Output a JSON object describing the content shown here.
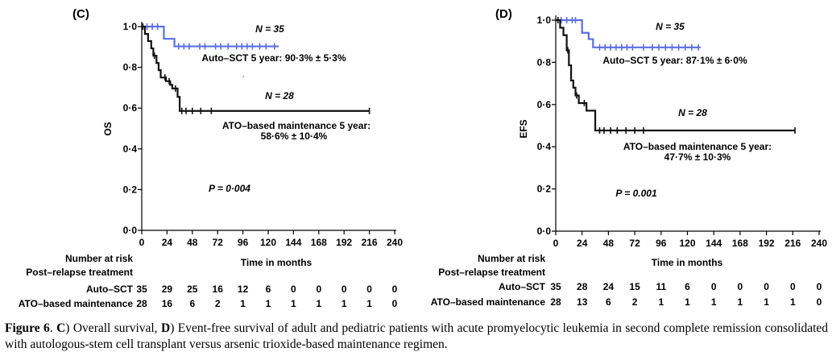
{
  "chart_data": [
    {
      "type": "line",
      "panel": "(C)",
      "ylabel": "OS",
      "xlabel": "Time in months",
      "xlim": [
        0,
        240
      ],
      "ylim": [
        0,
        1
      ],
      "xticks": [
        "0",
        "24",
        "48",
        "72",
        "96",
        "120",
        "144",
        "168",
        "192",
        "216",
        "240"
      ],
      "yticks": [
        "0·0",
        "0·2",
        "0·4",
        "0·6",
        "0·8",
        "1·0"
      ],
      "series": [
        {
          "color": "#5b6fe0",
          "x": [
            0,
            19,
            21,
            31,
            130
          ],
          "y": [
            1,
            1,
            0.94,
            0.903,
            0.903
          ],
          "censor_x": [
            5,
            10,
            15,
            35,
            40,
            45,
            55,
            60,
            70,
            75,
            82,
            90,
            95,
            100,
            105,
            112,
            118,
            126
          ]
        },
        {
          "color": "#111111",
          "x": [
            0,
            3,
            6,
            9,
            11,
            14,
            16,
            18,
            20,
            23,
            27,
            29,
            31,
            34,
            36,
            40,
            216
          ],
          "y": [
            1,
            0.964,
            0.929,
            0.893,
            0.857,
            0.821,
            0.786,
            0.75,
            0.75,
            0.732,
            0.714,
            0.696,
            0.696,
            0.655,
            0.586,
            0.586,
            0.586
          ],
          "censor_x": [
            1,
            12,
            22,
            26,
            32,
            38,
            42,
            48,
            56,
            66,
            216
          ]
        }
      ],
      "annotations": {
        "n1": "N = 35",
        "auto": "Auto–SCT 5 year: 90·3% ± 5·3%",
        "n2": "N = 28",
        "ato1": "ATO–based maintenance 5 year:",
        "ato2": "58·6% ± 10·4%",
        "p": "P = 0·004"
      },
      "risk_table": {
        "title1": "Number at risk",
        "title2": "Post–relapse treatment",
        "rows": [
          {
            "label": "Auto–SCT",
            "values": [
              "35",
              "29",
              "25",
              "16",
              "12",
              "6",
              "0",
              "0",
              "0",
              "0",
              "0"
            ]
          },
          {
            "label": "ATO–based maintenance",
            "values": [
              "28",
              "16",
              "6",
              "2",
              "1",
              "1",
              "1",
              "1",
              "1",
              "1",
              "0"
            ]
          }
        ]
      }
    },
    {
      "type": "line",
      "panel": "(D)",
      "ylabel": "EFS",
      "xlabel": "Time in months",
      "xlim": [
        0,
        240
      ],
      "ylim": [
        0,
        1
      ],
      "xticks": [
        "0",
        "24",
        "48",
        "72",
        "96",
        "120",
        "144",
        "168",
        "192",
        "216",
        "240"
      ],
      "yticks": [
        "0·0",
        "0·2",
        "0·4",
        "0·6",
        "0·8",
        "1·0"
      ],
      "series": [
        {
          "color": "#5b6fe0",
          "x": [
            0,
            21,
            24,
            30,
            34,
            132
          ],
          "y": [
            1,
            1,
            0.94,
            0.91,
            0.871,
            0.871
          ],
          "censor_x": [
            5,
            10,
            15,
            18,
            40,
            45,
            50,
            55,
            60,
            65,
            70,
            80,
            88,
            94,
            100,
            106,
            112,
            118,
            124,
            130
          ]
        },
        {
          "color": "#111111",
          "x": [
            0,
            4,
            7,
            10,
            12,
            14,
            16,
            18,
            21,
            24,
            28,
            30,
            36,
            40,
            218
          ],
          "y": [
            1,
            0.964,
            0.929,
            0.857,
            0.786,
            0.714,
            0.68,
            0.643,
            0.607,
            0.607,
            0.571,
            0.571,
            0.477,
            0.477,
            0.477
          ],
          "censor_x": [
            2,
            11,
            19,
            26,
            40,
            44,
            50,
            56,
            64,
            72,
            80,
            218
          ]
        }
      ],
      "annotations": {
        "n1": "N = 35",
        "auto": "Auto–SCT 5 year: 87·1% ± 6·0%",
        "n2": "N = 28",
        "ato1": "ATO–based maintenance 5 year:",
        "ato2": "47·7% ± 10·3%",
        "p": "P = 0.001"
      },
      "risk_table": {
        "title1": "Number at risk",
        "title2": "Post–relapse treatment",
        "rows": [
          {
            "label": "Auto–SCT",
            "values": [
              "35",
              "28",
              "24",
              "15",
              "11",
              "6",
              "0",
              "0",
              "0",
              "0",
              "0"
            ]
          },
          {
            "label": "ATO–based maintenance",
            "values": [
              "28",
              "13",
              "6",
              "2",
              "1",
              "1",
              "1",
              "1",
              "1",
              "1",
              "0"
            ]
          }
        ]
      }
    }
  ],
  "caption": {
    "fig_label": "Figure 6",
    "part1": ". ",
    "c_label": "C",
    "part2": ") Overall survival, ",
    "d_label": "D",
    "part3": ") Event-free survival of adult and pediatric patients with acute promyelocytic leukemia in second complete remission consolidated with autologous-stem cell transplant versus arsenic trioxide-based maintenance regimen."
  }
}
